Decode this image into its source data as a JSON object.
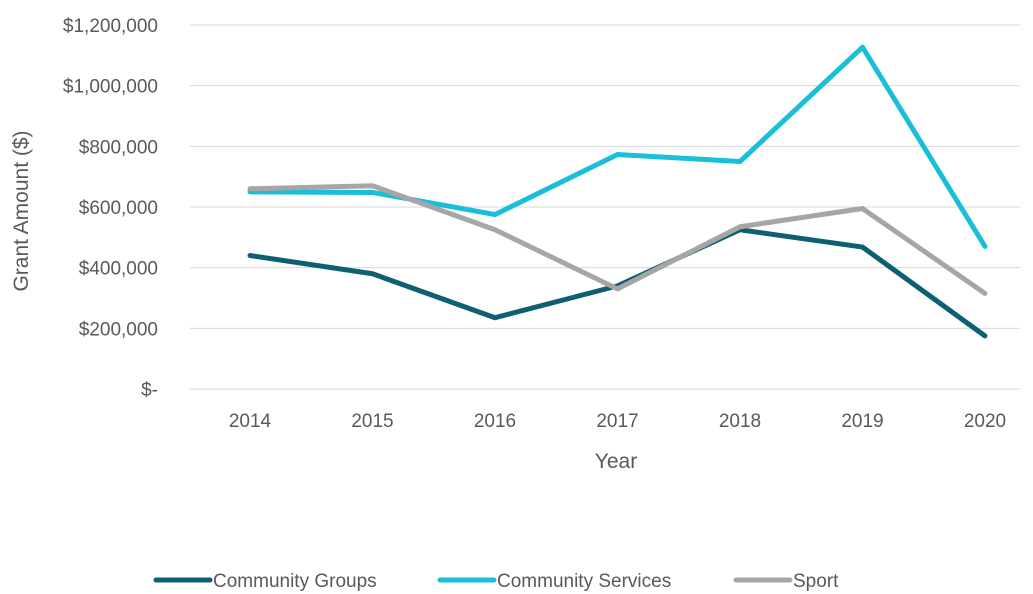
{
  "chart_data": {
    "type": "line",
    "title": "",
    "xlabel": "Year",
    "ylabel": "Grant Amount ($)",
    "categories": [
      "2014",
      "2015",
      "2016",
      "2017",
      "2018",
      "2019",
      "2020"
    ],
    "ylim": [
      0,
      1200000
    ],
    "y_ticks": [
      0,
      200000,
      400000,
      600000,
      800000,
      1000000,
      1200000
    ],
    "y_tick_labels": [
      "$-",
      "$200,000",
      "$400,000",
      "$600,000",
      "$800,000",
      "$1,000,000",
      "$1,200,000"
    ],
    "grid": true,
    "legend_position": "bottom",
    "series": [
      {
        "name": "Community Groups",
        "color": "#0e5f73",
        "values": [
          440000,
          380000,
          235000,
          340000,
          525000,
          468000,
          175000
        ]
      },
      {
        "name": "Community Services",
        "color": "#19bfd8",
        "values": [
          650000,
          648000,
          575000,
          773000,
          750000,
          1127000,
          470000
        ]
      },
      {
        "name": "Sport",
        "color": "#a6a6a6",
        "values": [
          660000,
          670000,
          525000,
          330000,
          535000,
          595000,
          315000
        ]
      }
    ]
  }
}
